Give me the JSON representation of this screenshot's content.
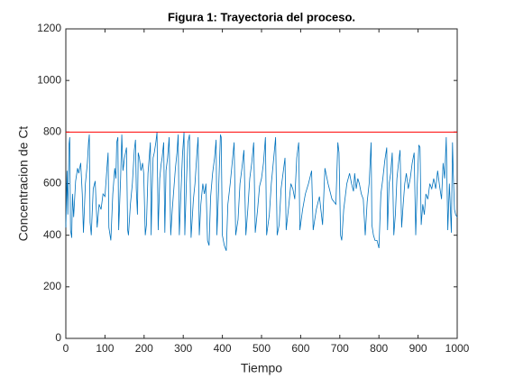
{
  "chart_data": {
    "type": "line",
    "title": "Figura 1: Trayectoria del proceso.",
    "xlabel": "Tiempo",
    "ylabel": "Concentracion de Ct",
    "color": "#0072bd",
    "reference_line": {
      "value": 800,
      "color": "#ff0000"
    },
    "xlim": [
      0,
      1000
    ],
    "xticks": [
      0,
      100,
      200,
      300,
      400,
      500,
      600,
      700,
      800,
      900,
      1000
    ],
    "ylim": [
      0,
      1200
    ],
    "yticks": [
      0,
      200,
      400,
      600,
      800,
      1000,
      1200
    ],
    "grid": false,
    "x": [
      0,
      3,
      5,
      8,
      10,
      12,
      15,
      17,
      20,
      25,
      30,
      33,
      38,
      42,
      45,
      50,
      55,
      58,
      60,
      62,
      65,
      70,
      75,
      80,
      85,
      90,
      95,
      100,
      105,
      108,
      110,
      115,
      120,
      125,
      128,
      130,
      133,
      135,
      140,
      143,
      146,
      150,
      155,
      158,
      160,
      165,
      170,
      175,
      178,
      180,
      183,
      185,
      188,
      192,
      196,
      199,
      203,
      206,
      210,
      213,
      216,
      218,
      220,
      223,
      226,
      230,
      233,
      236,
      240,
      243,
      246,
      250,
      253,
      256,
      260,
      264,
      268,
      272,
      276,
      280,
      284,
      287,
      290,
      294,
      298,
      302,
      304,
      308,
      312,
      316,
      320,
      326,
      330,
      335,
      338,
      341,
      345,
      350,
      354,
      358,
      362,
      366,
      370,
      375,
      380,
      384,
      386,
      390,
      395,
      397,
      400,
      405,
      410,
      414,
      420,
      425,
      430,
      434,
      440,
      445,
      450,
      455,
      460,
      465,
      470,
      475,
      480,
      484,
      490,
      495,
      500,
      505,
      510,
      513,
      520,
      525,
      530,
      536,
      540,
      545,
      550,
      555,
      560,
      563,
      570,
      575,
      580,
      585,
      590,
      595,
      598,
      605,
      612,
      620,
      628,
      632,
      640,
      648,
      656,
      662,
      670,
      680,
      690,
      695,
      698,
      702,
      705,
      710,
      718,
      725,
      730,
      735,
      738,
      742,
      746,
      750,
      755,
      760,
      765,
      770,
      775,
      780,
      782,
      786,
      790,
      795,
      800,
      805,
      810,
      815,
      820,
      822,
      826,
      830,
      834,
      838,
      842,
      846,
      850,
      854,
      858,
      862,
      866,
      870,
      875,
      880,
      885,
      890,
      894,
      898,
      902,
      905,
      908,
      912,
      916,
      920,
      925,
      930,
      935,
      940,
      945,
      950,
      955,
      960,
      964,
      968,
      972,
      976,
      980,
      985,
      988,
      990,
      993,
      996,
      1000
    ],
    "values": [
      430,
      650,
      480,
      750,
      780,
      420,
      390,
      560,
      470,
      610,
      660,
      640,
      680,
      560,
      410,
      600,
      680,
      760,
      790,
      450,
      400,
      580,
      610,
      430,
      520,
      500,
      560,
      550,
      660,
      720,
      430,
      380,
      560,
      660,
      620,
      760,
      780,
      420,
      620,
      790,
      650,
      700,
      740,
      420,
      400,
      520,
      600,
      730,
      770,
      580,
      480,
      720,
      700,
      650,
      680,
      640,
      400,
      440,
      640,
      700,
      760,
      400,
      550,
      700,
      720,
      760,
      800,
      420,
      620,
      670,
      700,
      760,
      410,
      650,
      700,
      780,
      400,
      500,
      580,
      660,
      720,
      790,
      400,
      560,
      710,
      800,
      400,
      600,
      760,
      790,
      390,
      540,
      600,
      720,
      780,
      400,
      520,
      600,
      560,
      600,
      380,
      360,
      550,
      640,
      700,
      770,
      400,
      560,
      790,
      780,
      400,
      360,
      340,
      520,
      600,
      680,
      760,
      400,
      460,
      600,
      660,
      730,
      400,
      500,
      620,
      680,
      760,
      410,
      500,
      590,
      620,
      680,
      780,
      400,
      480,
      600,
      680,
      780,
      400,
      440,
      580,
      640,
      700,
      420,
      520,
      600,
      580,
      540,
      700,
      760,
      420,
      500,
      560,
      600,
      650,
      420,
      500,
      550,
      440,
      660,
      600,
      540,
      520,
      760,
      720,
      400,
      380,
      500,
      600,
      640,
      600,
      570,
      640,
      580,
      620,
      600,
      560,
      540,
      400,
      530,
      600,
      760,
      440,
      400,
      380,
      380,
      350,
      560,
      620,
      690,
      740,
      420,
      600,
      640,
      720,
      400,
      480,
      620,
      680,
      730,
      430,
      520,
      600,
      640,
      580,
      620,
      680,
      720,
      400,
      600,
      750,
      740,
      440,
      520,
      480,
      560,
      540,
      600,
      580,
      620,
      580,
      650,
      590,
      540,
      680,
      620,
      780,
      420,
      600,
      410,
      760,
      640,
      500,
      480,
      470
    ]
  }
}
